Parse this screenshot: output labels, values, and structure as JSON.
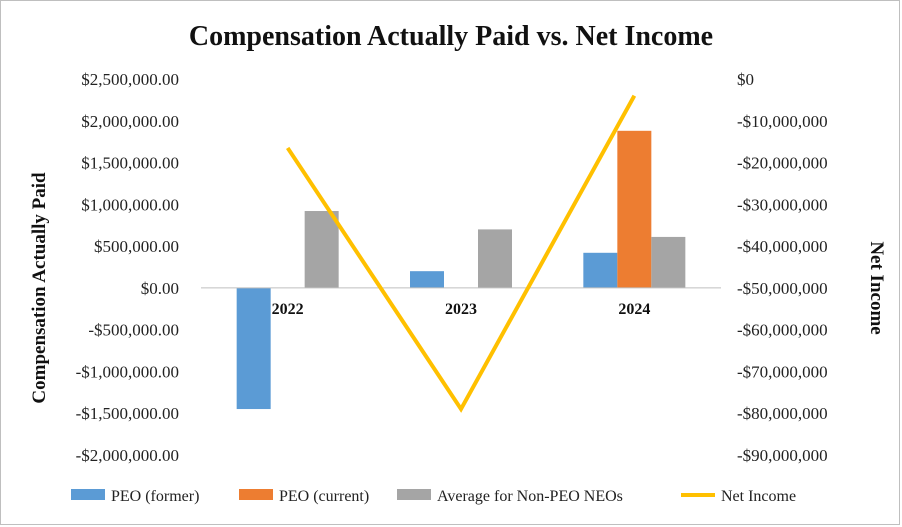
{
  "chart_data": {
    "type": "bar",
    "title": "Compensation Actually Paid vs. Net Income",
    "categories": [
      "2022",
      "2023",
      "2024"
    ],
    "ylabel": "Compensation Actually Paid",
    "y2label": "Net Income",
    "ylim": [
      -2000000,
      2500000
    ],
    "y2lim": [
      -90000000,
      0
    ],
    "yticks": [
      2500000,
      2000000,
      1500000,
      1000000,
      500000,
      0,
      -500000,
      -1000000,
      -1500000,
      -2000000
    ],
    "ytick_labels": [
      "$2,500,000.00",
      "$2,000,000.00",
      "$1,500,000.00",
      "$1,000,000.00",
      "$500,000.00",
      "$0.00",
      "-$500,000.00",
      "-$1,000,000.00",
      "-$1,500,000.00",
      "-$2,000,000.00"
    ],
    "y2ticks": [
      0,
      -10000000,
      -20000000,
      -30000000,
      -40000000,
      -50000000,
      -60000000,
      -70000000,
      -80000000,
      -90000000
    ],
    "y2tick_labels": [
      "$0",
      "-$10,000,000",
      "-$20,000,000",
      "-$30,000,000",
      "-$40,000,000",
      "-$50,000,000",
      "-$60,000,000",
      "-$70,000,000",
      "-$80,000,000",
      "-$90,000,000"
    ],
    "series": [
      {
        "name": "PEO (former)",
        "type": "bar",
        "axis": "left",
        "color": "#5b9bd5",
        "values": [
          -1450000,
          200000,
          420000
        ]
      },
      {
        "name": "PEO (current)",
        "type": "bar",
        "axis": "left",
        "color": "#ed7d31",
        "values": [
          0,
          0,
          1880000
        ]
      },
      {
        "name": "Average for Non-PEO NEOs",
        "type": "bar",
        "axis": "left",
        "color": "#a5a5a5",
        "values": [
          920000,
          700000,
          610000
        ]
      },
      {
        "name": "Net Income",
        "type": "line",
        "axis": "right",
        "color": "#ffc000",
        "values": [
          -16500000,
          -79000000,
          -4000000
        ]
      }
    ],
    "grid": false,
    "legend_position": "bottom"
  }
}
